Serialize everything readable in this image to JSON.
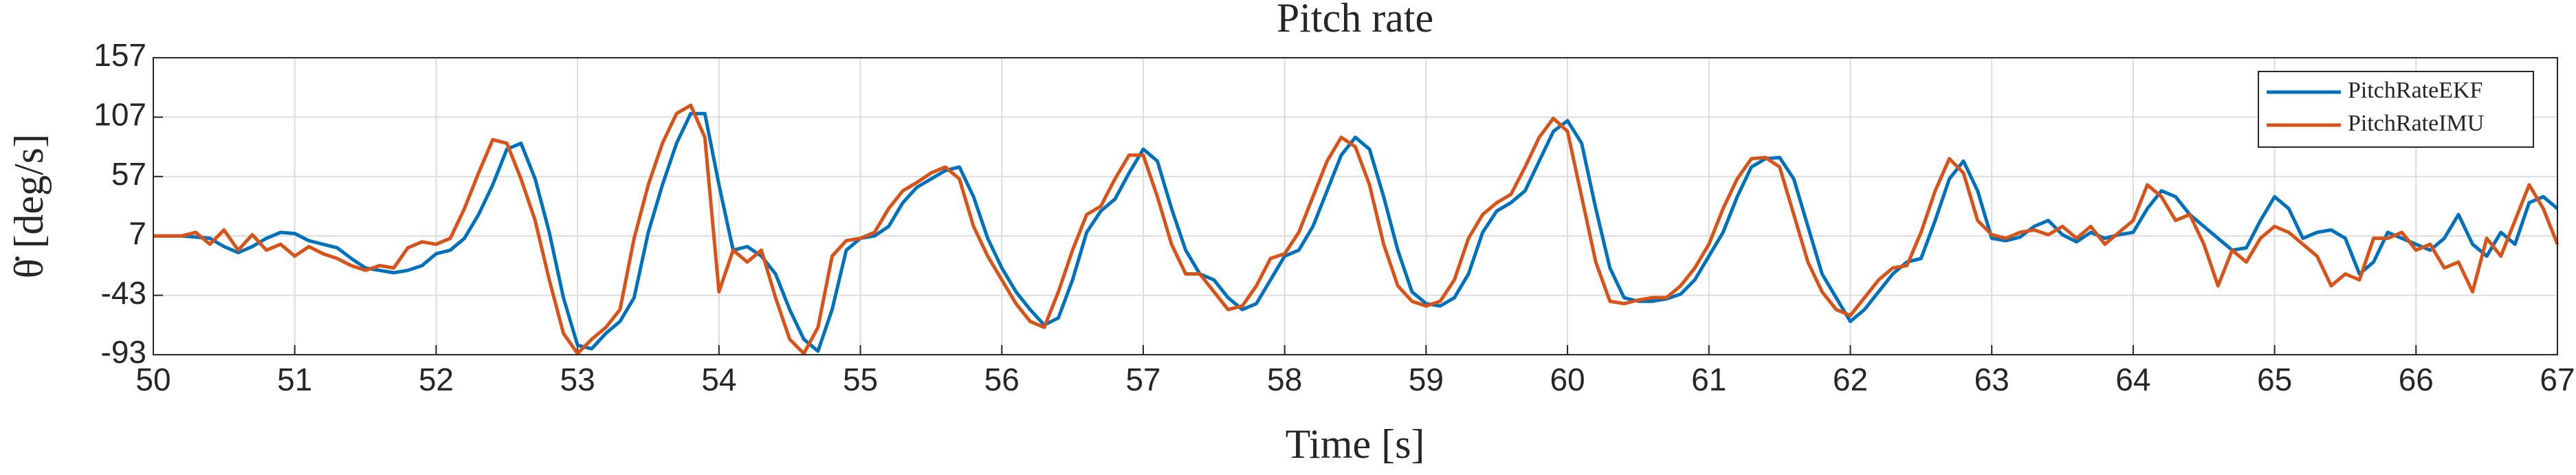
{
  "chart_data": {
    "type": "line",
    "title": "Pitch rate",
    "x_label": "Time [s]",
    "y_label": "θ̇ [deg/s]",
    "x": [
      50.0,
      50.1,
      50.2,
      50.3,
      50.4,
      50.5,
      50.6,
      50.7,
      50.8,
      50.9,
      51.0,
      51.1,
      51.2,
      51.3,
      51.4,
      51.5,
      51.6,
      51.7,
      51.8,
      51.9,
      52.0,
      52.1,
      52.2,
      52.3,
      52.4,
      52.5,
      52.6,
      52.7,
      52.8,
      52.9,
      53.0,
      53.1,
      53.2,
      53.3,
      53.4,
      53.5,
      53.6,
      53.7,
      53.8,
      53.9,
      54.0,
      54.1,
      54.2,
      54.3,
      54.4,
      54.5,
      54.6,
      54.7,
      54.8,
      54.9,
      55.0,
      55.1,
      55.2,
      55.3,
      55.4,
      55.5,
      55.6,
      55.7,
      55.8,
      55.9,
      56.0,
      56.1,
      56.2,
      56.3,
      56.4,
      56.5,
      56.6,
      56.7,
      56.8,
      56.9,
      57.0,
      57.1,
      57.2,
      57.3,
      57.4,
      57.5,
      57.6,
      57.7,
      57.8,
      57.9,
      58.0,
      58.1,
      58.2,
      58.3,
      58.4,
      58.5,
      58.6,
      58.7,
      58.8,
      58.9,
      59.0,
      59.1,
      59.2,
      59.3,
      59.4,
      59.5,
      59.6,
      59.7,
      59.8,
      59.9,
      60.0,
      60.1,
      60.2,
      60.3,
      60.4,
      60.5,
      60.6,
      60.7,
      60.8,
      60.9,
      61.0,
      61.1,
      61.2,
      61.3,
      61.4,
      61.5,
      61.6,
      61.7,
      61.8,
      61.9,
      62.0,
      62.1,
      62.2,
      62.3,
      62.4,
      62.5,
      62.6,
      62.7,
      62.8,
      62.9,
      63.0,
      63.1,
      63.2,
      63.3,
      63.4,
      63.5,
      63.6,
      63.7,
      63.8,
      63.9,
      64.0,
      64.1,
      64.2,
      64.3,
      64.4,
      64.5,
      64.6,
      64.7,
      64.8,
      64.9,
      65.0,
      65.1,
      65.2,
      65.3,
      65.4,
      65.5,
      65.6,
      65.7,
      65.8,
      65.9,
      66.0,
      66.1,
      66.2,
      66.3,
      66.4,
      66.5,
      66.6,
      66.7,
      66.8,
      66.9,
      67.0
    ],
    "series": [
      {
        "name": "PitchRateEKF",
        "color": "#0072bd",
        "values": [
          7,
          7,
          7,
          6,
          5,
          -2,
          -7,
          -2,
          5,
          10,
          9,
          3,
          0,
          -3,
          -12,
          -20,
          -22,
          -24,
          -22,
          -18,
          -8,
          -5,
          5,
          25,
          50,
          80,
          85,
          55,
          10,
          -45,
          -85,
          -88,
          -75,
          -65,
          -45,
          10,
          50,
          85,
          110,
          110,
          50,
          -5,
          -2,
          -10,
          -25,
          -55,
          -80,
          -90,
          -55,
          -5,
          5,
          7,
          15,
          35,
          48,
          55,
          62,
          65,
          40,
          5,
          -20,
          -40,
          -55,
          -68,
          -62,
          -30,
          10,
          28,
          38,
          60,
          80,
          70,
          30,
          -5,
          -25,
          -30,
          -45,
          -55,
          -50,
          -30,
          -10,
          -5,
          15,
          45,
          75,
          90,
          80,
          40,
          -5,
          -40,
          -50,
          -52,
          -45,
          -25,
          10,
          28,
          35,
          45,
          70,
          95,
          104,
          85,
          30,
          -20,
          -45,
          -48,
          -48,
          -46,
          -42,
          -30,
          -10,
          10,
          40,
          65,
          72,
          73,
          55,
          15,
          -25,
          -45,
          -65,
          -55,
          -40,
          -25,
          -15,
          -12,
          20,
          55,
          70,
          45,
          5,
          3,
          6,
          15,
          20,
          8,
          2,
          10,
          5,
          8,
          10,
          30,
          45,
          40,
          25,
          15,
          5,
          -5,
          -3,
          20,
          40,
          30,
          5,
          10,
          12,
          5,
          -25,
          -15,
          10,
          5,
          0,
          -5,
          5,
          25,
          0,
          -10,
          10,
          0,
          35,
          40,
          30
        ]
      },
      {
        "name": "PitchRateIMU",
        "color": "#d95319",
        "values": [
          7,
          7,
          7,
          10,
          0,
          12,
          -5,
          8,
          -5,
          0,
          -10,
          -2,
          -8,
          -12,
          -18,
          -22,
          -18,
          -20,
          -3,
          2,
          0,
          5,
          30,
          60,
          88,
          85,
          55,
          20,
          -30,
          -75,
          -92,
          -80,
          -70,
          -55,
          5,
          50,
          85,
          110,
          117,
          90,
          -40,
          -5,
          -15,
          -5,
          -45,
          -80,
          -92,
          -70,
          -10,
          3,
          5,
          10,
          30,
          45,
          52,
          60,
          65,
          55,
          15,
          -10,
          -30,
          -50,
          -65,
          -70,
          -40,
          -5,
          25,
          32,
          55,
          75,
          75,
          40,
          0,
          -25,
          -25,
          -40,
          -55,
          -52,
          -35,
          -12,
          -8,
          10,
          40,
          70,
          90,
          82,
          50,
          0,
          -35,
          -48,
          -52,
          -48,
          -30,
          5,
          25,
          35,
          42,
          65,
          90,
          106,
          95,
          40,
          -15,
          -48,
          -50,
          -47,
          -45,
          -45,
          -35,
          -20,
          0,
          30,
          55,
          72,
          73,
          65,
          25,
          -15,
          -40,
          -55,
          -60,
          -45,
          -30,
          -20,
          -18,
          10,
          45,
          72,
          60,
          20,
          8,
          5,
          10,
          12,
          8,
          15,
          5,
          15,
          0,
          10,
          20,
          50,
          40,
          20,
          25,
          0,
          -35,
          -5,
          -15,
          5,
          15,
          10,
          0,
          -10,
          -35,
          -25,
          -30,
          5,
          5,
          10,
          -5,
          0,
          -20,
          -15,
          -40,
          5,
          -10,
          20,
          50,
          30,
          0
        ]
      }
    ],
    "xlim": [
      50,
      67
    ],
    "xticks": [
      50,
      51,
      52,
      53,
      54,
      55,
      56,
      57,
      58,
      59,
      60,
      61,
      62,
      63,
      64,
      65,
      66,
      67
    ],
    "ylim": [
      -93,
      157
    ],
    "yticks": [
      -93,
      -43,
      7,
      57,
      107,
      157
    ],
    "grid": true,
    "legend": "top-right"
  }
}
